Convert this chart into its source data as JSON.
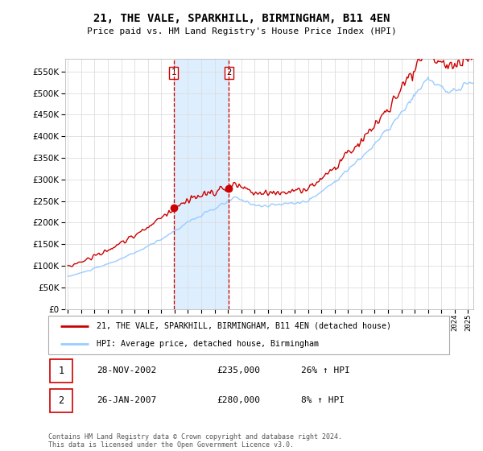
{
  "title": "21, THE VALE, SPARKHILL, BIRMINGHAM, B11 4EN",
  "subtitle": "Price paid vs. HM Land Registry's House Price Index (HPI)",
  "legend_label_red": "21, THE VALE, SPARKHILL, BIRMINGHAM, B11 4EN (detached house)",
  "legend_label_blue": "HPI: Average price, detached house, Birmingham",
  "sale1_label": "1",
  "sale1_date": "28-NOV-2002",
  "sale1_price": "£235,000",
  "sale1_hpi": "26% ↑ HPI",
  "sale2_label": "2",
  "sale2_date": "26-JAN-2007",
  "sale2_price": "£280,000",
  "sale2_hpi": "8% ↑ HPI",
  "footer": "Contains HM Land Registry data © Crown copyright and database right 2024.\nThis data is licensed under the Open Government Licence v3.0.",
  "red_color": "#cc0000",
  "blue_color": "#99ccff",
  "shade_color": "#ddeeff",
  "grid_color": "#dddddd",
  "bg_color": "#ffffff",
  "ylim": [
    0,
    580000
  ],
  "yticks": [
    0,
    50000,
    100000,
    150000,
    200000,
    250000,
    300000,
    350000,
    400000,
    450000,
    500000,
    550000
  ],
  "sale1_year": 2002.92,
  "sale1_value": 235000,
  "sale2_year": 2007.08,
  "sale2_value": 280000,
  "xmin": 1994.8,
  "xmax": 2025.4
}
